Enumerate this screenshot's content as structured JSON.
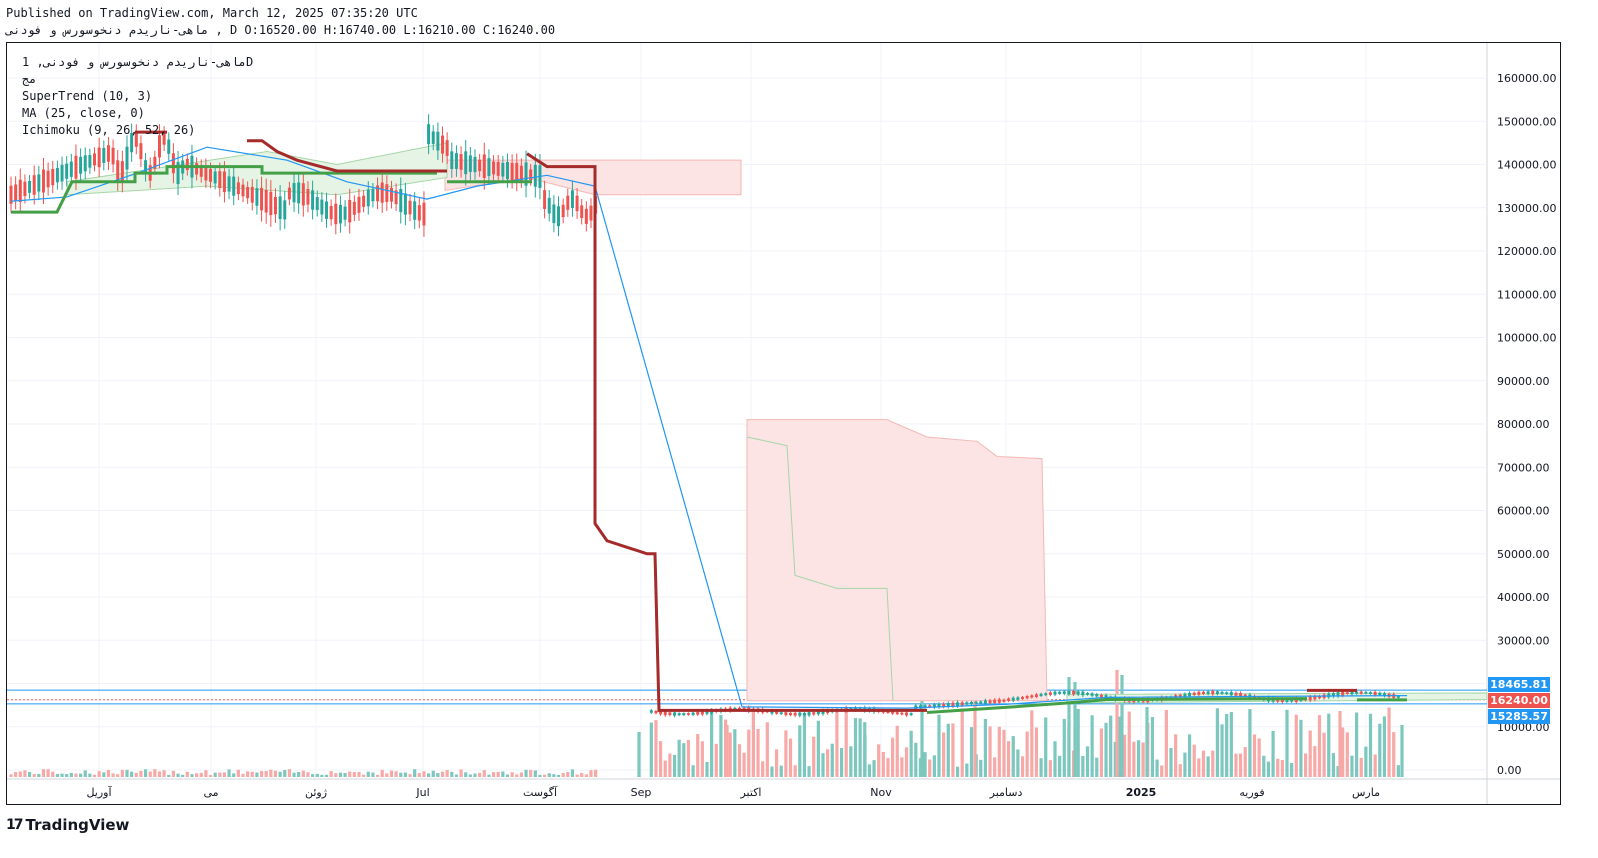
{
  "header": {
    "published": "Published on TradingView.com, March 12, 2025 07:35:20 UTC",
    "ohlc": "ماهی-ناریدم دنخوسورس و فودنی , D O:16520.00 H:16740.00 L:16210.00 C:16240.00"
  },
  "legend": {
    "symbol": "ماهی-ناریدم دنخوسورس و فودنی, 1D",
    "exchange": "مج",
    "supertrend": "SuperTrend (10, 3)",
    "ma": "MA (25, close, 0)",
    "ichimoku": "Ichimoku (9, 26, 52, 26)"
  },
  "price_tags": {
    "upper": "18465.81",
    "last": "16240.00",
    "lower": "15285.57"
  },
  "brand": "TradingView",
  "colors": {
    "up": "#26a69a",
    "down": "#ef5350",
    "supertrend_up": "#43a047",
    "supertrend_down": "#a52a2a",
    "ma": "#2196f3",
    "cloud_bear": "#fce4e4",
    "cloud_bull": "#e6f4e6",
    "tag_blue": "#2196f3",
    "tag_red": "#ef5350"
  },
  "chart_data": {
    "type": "candlestick",
    "y_ticks": [
      0,
      10000,
      20000,
      30000,
      40000,
      50000,
      60000,
      70000,
      80000,
      90000,
      100000,
      110000,
      120000,
      130000,
      140000,
      150000,
      160000
    ],
    "y_tick_labels": [
      "0.00",
      "10000.00",
      "20000.00",
      "30000.00",
      "40000.00",
      "50000.00",
      "60000.00",
      "70000.00",
      "80000.00",
      "90000.00",
      "100000.00",
      "110000.00",
      "120000.00",
      "130000.00",
      "140000.00",
      "150000.00",
      "160000.00"
    ],
    "ylim": [
      -2000,
      166000
    ],
    "x_labels": [
      "آوریل",
      "می",
      "ژوئن",
      "Jul",
      "آگوست",
      "Sep",
      "اکتبر",
      "Nov",
      "دسامبر",
      "2025",
      "فوریه",
      "مارس"
    ],
    "last_price": 16240,
    "upper_line": 18465.81,
    "lower_line": 15285.57,
    "grid": true
  }
}
